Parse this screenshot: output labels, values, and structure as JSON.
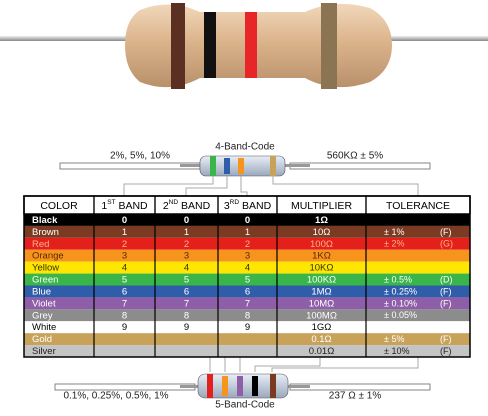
{
  "top_label": "4-Band-Code",
  "top_left": "2%, 5%, 10%",
  "top_right": "560KΩ  ± 5%",
  "bottom_label": "5-Band-Code",
  "bottom_left": "0.1%, 0.25%, 0.5%, 1%",
  "bottom_right": "237 Ω  ± 1%",
  "table": {
    "header": [
      {
        "label": "COLOR"
      },
      {
        "num": "1",
        "sup": "ST",
        "label": " BAND"
      },
      {
        "num": "2",
        "sup": "ND",
        "label": " BAND"
      },
      {
        "num": "3",
        "sup": "RD",
        "label": " BAND"
      },
      {
        "label": "MULTIPLIER"
      },
      {
        "label": "TOLERANCE"
      }
    ],
    "rows": [
      {
        "fill": "#000000",
        "ink": "#ffffff",
        "color": "Black",
        "band1": "0",
        "band2": "0",
        "band3": "0",
        "multiplier": "1Ω"
      },
      {
        "fill": "#7a3b22",
        "ink": "#ffffff",
        "color": "Brown",
        "band1": "1",
        "band2": "1",
        "band3": "1",
        "multiplier": "10Ω",
        "tolerance": "± 1%",
        "code": "(F)"
      },
      {
        "fill": "#e3201b",
        "ink": "#ffb38a",
        "color": "Red",
        "band1": "2",
        "band2": "2",
        "band3": "2",
        "multiplier": "100Ω",
        "tolerance": "± 2%",
        "code": "(G)"
      },
      {
        "fill": "#f7941d",
        "ink": "#5a2a00",
        "color": "Orange",
        "band1": "3",
        "band2": "3",
        "band3": "3",
        "multiplier": "1KΩ"
      },
      {
        "fill": "#ffe600",
        "ink": "#333300",
        "color": "Yellow",
        "band1": "4",
        "band2": "4",
        "band3": "4",
        "multiplier": "10KΩ"
      },
      {
        "fill": "#39b54a",
        "ink": "#ffffff",
        "color": "Green",
        "band1": "5",
        "band2": "5",
        "band3": "5",
        "multiplier": "100KΩ",
        "tolerance": "± 0.5%",
        "code": "(D)"
      },
      {
        "fill": "#2f5daa",
        "ink": "#ffffff",
        "color": "Blue",
        "band1": "6",
        "band2": "6",
        "band3": "6",
        "multiplier": "1MΩ",
        "tolerance": "± 0.25%",
        "code": "(F)"
      },
      {
        "fill": "#8e5ea8",
        "ink": "#ffffff",
        "color": "Violet",
        "band1": "7",
        "band2": "7",
        "band3": "7",
        "multiplier": "10MΩ",
        "tolerance": "± 0.10%",
        "code": "(F)"
      },
      {
        "fill": "#8c8c8c",
        "ink": "#ffffff",
        "color": "Grey",
        "band1": "8",
        "band2": "8",
        "band3": "8",
        "multiplier": "100MΩ",
        "tolerance": "± 0.05%"
      },
      {
        "fill": "#ffffff",
        "ink": "#000000",
        "color": "White",
        "band1": "9",
        "band2": "9",
        "band3": "9",
        "multiplier": "1GΩ"
      },
      {
        "fill": "#c9a25a",
        "ink": "#ffffff",
        "color": "Gold",
        "multiplier": "0.1Ω",
        "tolerance": "± 5%",
        "code": "(F)"
      },
      {
        "fill": "#c4c4c4",
        "ink": "#222222",
        "color": "Silver",
        "multiplier": "0.01Ω",
        "tolerance": "± 10%",
        "code": "(F)"
      }
    ]
  }
}
